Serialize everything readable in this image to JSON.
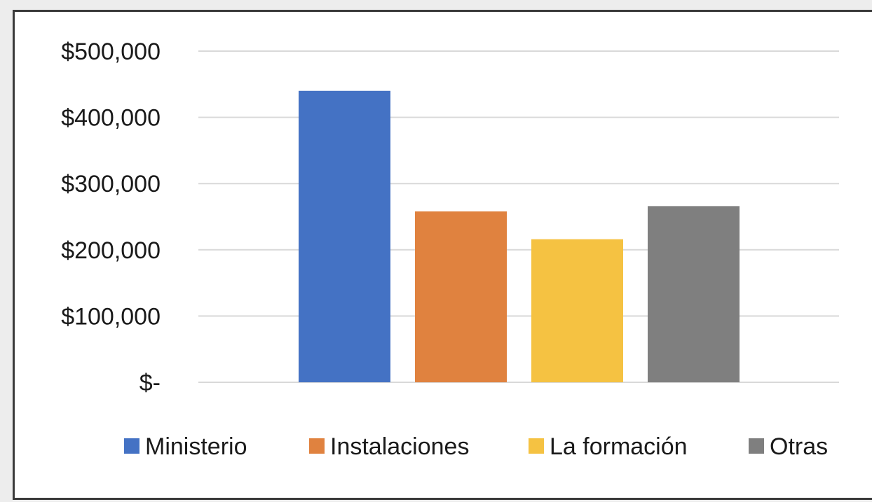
{
  "chart_data": {
    "type": "bar",
    "title": "",
    "xlabel": "",
    "ylabel": "",
    "ylim": [
      0,
      500000
    ],
    "y_ticks": [
      0,
      100000,
      200000,
      300000,
      400000,
      500000
    ],
    "y_tick_labels": [
      "$-",
      "$100,000",
      "$200,000",
      "$300,000",
      "$400,000",
      "$500,000"
    ],
    "grid": true,
    "legend_position": "bottom",
    "series": [
      {
        "name": "Ministerio",
        "value": 440000,
        "color": "#4472c4"
      },
      {
        "name": "Instalaciones",
        "value": 258000,
        "color": "#e0823f"
      },
      {
        "name": "La formación",
        "value": 216000,
        "color": "#f5c242"
      },
      {
        "name": "Otras",
        "value": 266000,
        "color": "#7f7f7f"
      }
    ]
  }
}
